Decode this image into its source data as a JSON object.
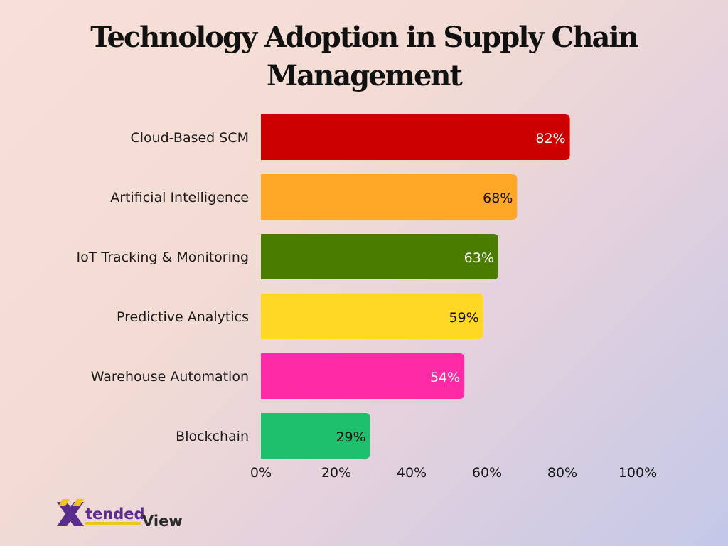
{
  "chart_data": {
    "type": "bar",
    "orientation": "horizontal",
    "title": "Technology Adoption in Supply Chain Management",
    "categories": [
      "Cloud-Based SCM",
      "Artificial Intelligence",
      "IoT Tracking & Monitoring",
      "Predictive Analytics",
      "Warehouse Automation",
      "Blockchain"
    ],
    "values": [
      82,
      68,
      63,
      59,
      54,
      29
    ],
    "value_labels": [
      "82%",
      "68%",
      "63%",
      "59%",
      "54%",
      "29%"
    ],
    "colors": [
      "#cc0000",
      "#ffa726",
      "#4a7c00",
      "#ffd724",
      "#ff2aa5",
      "#1ec06d"
    ],
    "label_colors": [
      "#ffffff",
      "#111111",
      "#ffffff",
      "#111111",
      "#ffffff",
      "#111111"
    ],
    "xlim": [
      0,
      100
    ],
    "xticks": [
      "0%",
      "20%",
      "40%",
      "60%",
      "80%",
      "100%"
    ],
    "xlabel": "",
    "ylabel": "",
    "grid": false,
    "legend": "none"
  },
  "brand": {
    "logo_text_1": "tended",
    "logo_text_2": "View",
    "logo_colors": [
      "#5a2d8c",
      "#f2c21f"
    ]
  }
}
